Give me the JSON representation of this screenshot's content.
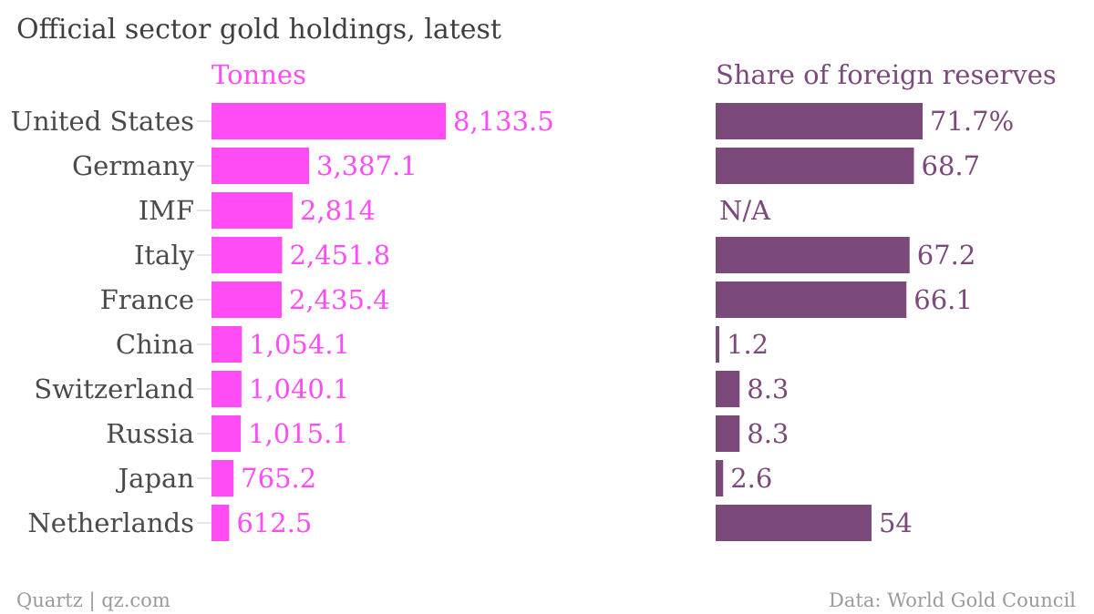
{
  "chart_data": {
    "type": "bar",
    "title": "Official sector gold holdings, latest",
    "categories": [
      "United States",
      "Germany",
      "IMF",
      "Italy",
      "France",
      "China",
      "Switzerland",
      "Russia",
      "Japan",
      "Netherlands"
    ],
    "series": [
      {
        "name": "Tonnes",
        "color": "#ff4cf5",
        "values": [
          8133.5,
          3387.1,
          2814,
          2451.8,
          2435.4,
          1054.1,
          1040.1,
          1015.1,
          765.2,
          612.5
        ],
        "labels": [
          "8,133.5",
          "3,387.1",
          "2,814",
          "2,451.8",
          "2,435.4",
          "1,054.1",
          "1,040.1",
          "1,015.1",
          "765.2",
          "612.5"
        ],
        "xlim": [
          0,
          8133.5
        ]
      },
      {
        "name": "Share of foreign reserves",
        "color": "#7b4a7b",
        "values": [
          71.7,
          68.7,
          null,
          67.2,
          66.1,
          1.2,
          8.3,
          8.3,
          2.6,
          54
        ],
        "labels": [
          "71.7%",
          "68.7",
          "N/A",
          "67.2",
          "66.1",
          "1.2",
          "8.3",
          "8.3",
          "2.6",
          "54"
        ],
        "xlim": [
          0,
          71.7
        ]
      }
    ],
    "footer": {
      "source_left": "Quartz | qz.com",
      "source_right": "Data: World Gold Council"
    },
    "colors": {
      "title": "#3f3f3f",
      "category": "#4a4a4a",
      "footer": "#9a9a9a",
      "tick": "#cccccc"
    }
  }
}
